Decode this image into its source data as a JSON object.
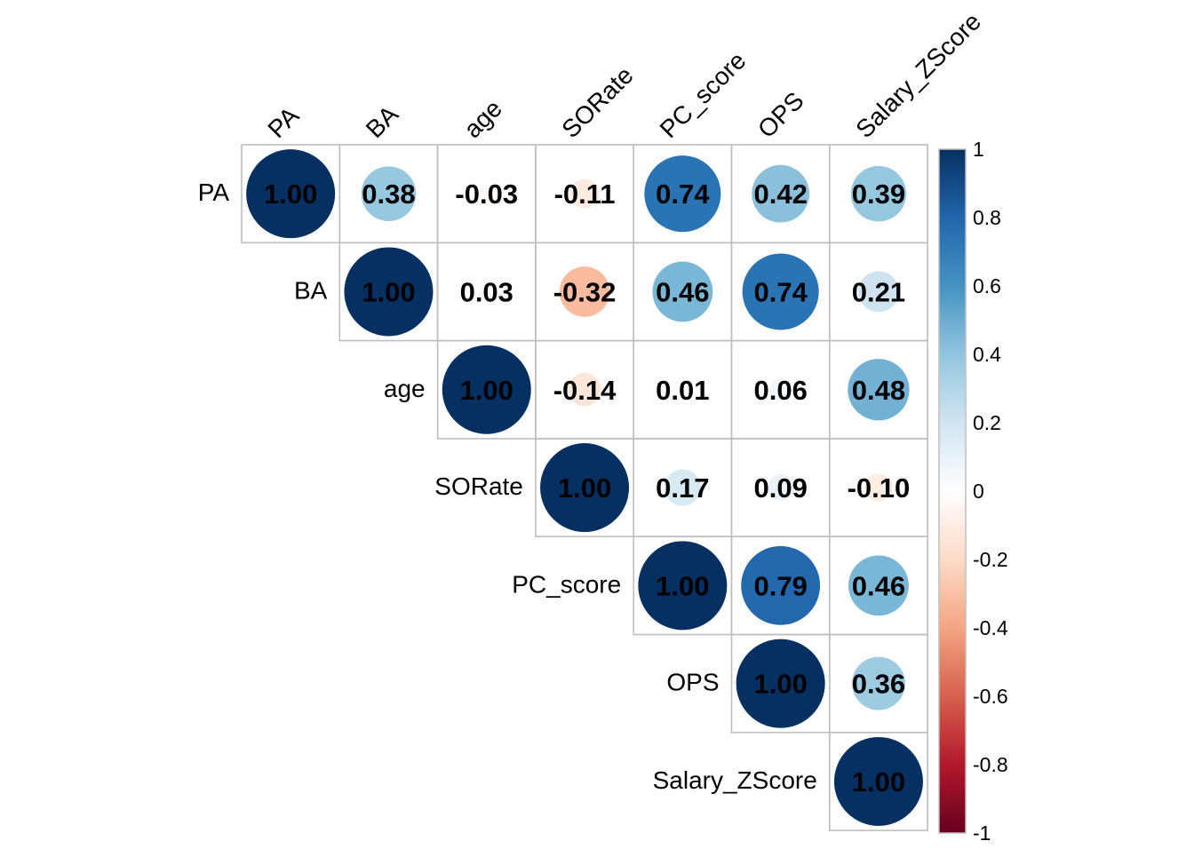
{
  "chart_data": {
    "type": "heatmap",
    "subtype": "correlation-matrix-upper-circles",
    "variables": [
      "PA",
      "BA",
      "age",
      "SORate",
      "PC_score",
      "OPS",
      "Salary_ZScore"
    ],
    "matrix": [
      [
        1.0,
        0.38,
        -0.03,
        -0.11,
        0.74,
        0.42,
        0.39
      ],
      [
        null,
        1.0,
        0.03,
        -0.32,
        0.46,
        0.74,
        0.21
      ],
      [
        null,
        null,
        1.0,
        -0.14,
        0.01,
        0.06,
        0.48
      ],
      [
        null,
        null,
        null,
        1.0,
        0.17,
        0.09,
        -0.1
      ],
      [
        null,
        null,
        null,
        null,
        1.0,
        0.79,
        0.46
      ],
      [
        null,
        null,
        null,
        null,
        null,
        1.0,
        0.36
      ],
      [
        null,
        null,
        null,
        null,
        null,
        null,
        1.0
      ]
    ],
    "number_format": 2,
    "color_scale": {
      "range": [
        -1,
        1
      ],
      "ticks": [
        "1",
        "0.8",
        "0.6",
        "0.4",
        "0.2",
        "0",
        "-0.2",
        "-0.4",
        "-0.6",
        "-0.8",
        "-1"
      ],
      "tick_values": [
        1,
        0.8,
        0.6,
        0.4,
        0.2,
        0,
        -0.2,
        -0.4,
        -0.6,
        -0.8,
        -1
      ],
      "stops": [
        {
          "v": -1.0,
          "c": "#67001F"
        },
        {
          "v": -0.8,
          "c": "#B2182B"
        },
        {
          "v": -0.6,
          "c": "#D6604D"
        },
        {
          "v": -0.4,
          "c": "#F4A582"
        },
        {
          "v": -0.2,
          "c": "#FDDBC7"
        },
        {
          "v": 0.0,
          "c": "#FFFFFF"
        },
        {
          "v": 0.2,
          "c": "#D1E5F0"
        },
        {
          "v": 0.4,
          "c": "#92C5DE"
        },
        {
          "v": 0.6,
          "c": "#4393C3"
        },
        {
          "v": 0.8,
          "c": "#2166AC"
        },
        {
          "v": 1.0,
          "c": "#053061"
        }
      ]
    },
    "grid": true,
    "legend_position": "right"
  }
}
